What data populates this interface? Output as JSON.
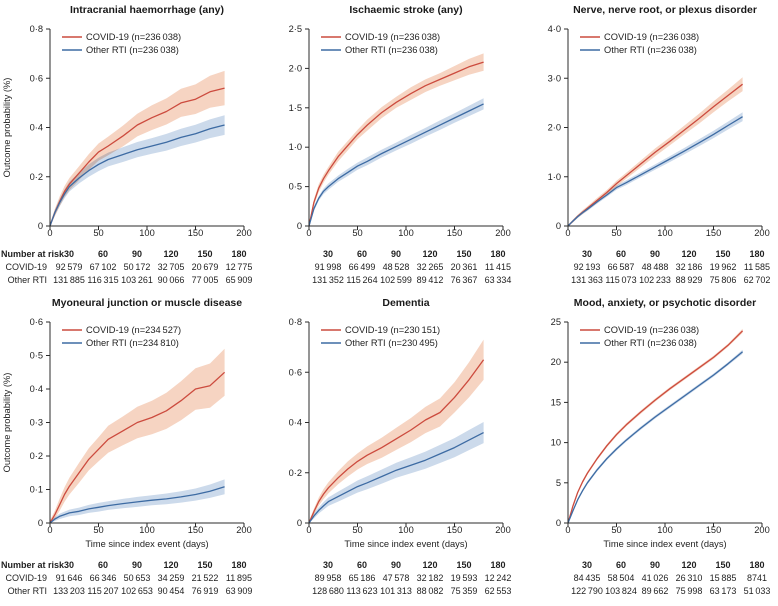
{
  "figure": {
    "ylabel": "Outcome probability (%)",
    "xlabel": "Time since index event (days)",
    "risk_label": "Number at risk",
    "risk_row_labels": [
      "COVID-19",
      "Other RTI"
    ],
    "colors": {
      "covid_line": "#cc4b3e",
      "covid_band": "#f6d4c2",
      "rti_line": "#3d6ba3",
      "rti_band": "#ccdaeb",
      "axis": "#2b2b2b",
      "text": "#1f1f1f"
    }
  },
  "chart_data": [
    {
      "type": "line",
      "title": "Intracranial haemorrhage (any)",
      "legend": [
        "COVID-19 (n=236 038)",
        "Other RTI (n=236 038)"
      ],
      "xlim": [
        0,
        200
      ],
      "xticks": [
        0,
        50,
        100,
        150,
        200
      ],
      "ylim": [
        0,
        0.8
      ],
      "yticks": [
        0,
        0.2,
        0.4,
        0.6,
        0.8
      ],
      "ytick_labels": [
        "0",
        "0·2",
        "0·4",
        "0·6",
        "0·8"
      ],
      "x": [
        0,
        5,
        10,
        15,
        20,
        30,
        40,
        50,
        60,
        75,
        90,
        105,
        120,
        135,
        150,
        165,
        180
      ],
      "series": [
        {
          "name": "COVID-19",
          "color": "covid",
          "y": [
            0,
            0.055,
            0.1,
            0.14,
            0.17,
            0.215,
            0.26,
            0.3,
            0.325,
            0.365,
            0.41,
            0.44,
            0.465,
            0.5,
            0.515,
            0.545,
            0.56
          ],
          "band": [
            0.01,
            0.015,
            0.02,
            0.022,
            0.025,
            0.028,
            0.032,
            0.035,
            0.038,
            0.042,
            0.046,
            0.05,
            0.053,
            0.057,
            0.06,
            0.065,
            0.07
          ]
        },
        {
          "name": "Other RTI",
          "color": "rti",
          "y": [
            0,
            0.055,
            0.095,
            0.13,
            0.16,
            0.195,
            0.225,
            0.25,
            0.27,
            0.29,
            0.31,
            0.325,
            0.34,
            0.36,
            0.375,
            0.395,
            0.41
          ],
          "band": [
            0.008,
            0.012,
            0.015,
            0.018,
            0.02,
            0.022,
            0.025,
            0.027,
            0.028,
            0.03,
            0.031,
            0.032,
            0.034,
            0.035,
            0.036,
            0.038,
            0.04
          ]
        }
      ],
      "number_at_risk": {
        "times": [
          "30",
          "60",
          "90",
          "120",
          "150",
          "180"
        ],
        "rows": [
          [
            "92 579",
            "67 102",
            "50 172",
            "32 705",
            "20 679",
            "12 775"
          ],
          [
            "131 885",
            "116 315",
            "103 261",
            "90 066",
            "77 005",
            "65 909"
          ]
        ]
      }
    },
    {
      "type": "line",
      "title": "Ischaemic stroke (any)",
      "legend": [
        "COVID-19 (n=236 038)",
        "Other RTI (n=236 038)"
      ],
      "xlim": [
        0,
        200
      ],
      "xticks": [
        0,
        50,
        100,
        150,
        200
      ],
      "ylim": [
        0,
        2.5
      ],
      "yticks": [
        0,
        0.5,
        1.0,
        1.5,
        2.0,
        2.5
      ],
      "ytick_labels": [
        "0",
        "0·5",
        "1·0",
        "1·5",
        "2·0",
        "2·5"
      ],
      "x": [
        0,
        5,
        10,
        15,
        20,
        30,
        40,
        50,
        60,
        75,
        90,
        105,
        120,
        135,
        150,
        165,
        180
      ],
      "series": [
        {
          "name": "COVID-19",
          "color": "covid",
          "y": [
            0,
            0.3,
            0.48,
            0.6,
            0.7,
            0.88,
            1.02,
            1.16,
            1.28,
            1.44,
            1.57,
            1.68,
            1.78,
            1.86,
            1.94,
            2.02,
            2.08
          ],
          "band": [
            0.03,
            0.04,
            0.05,
            0.05,
            0.05,
            0.06,
            0.06,
            0.06,
            0.07,
            0.07,
            0.07,
            0.08,
            0.08,
            0.08,
            0.09,
            0.1,
            0.11
          ]
        },
        {
          "name": "Other RTI",
          "color": "rti",
          "y": [
            0,
            0.22,
            0.35,
            0.44,
            0.5,
            0.6,
            0.68,
            0.76,
            0.82,
            0.92,
            1.01,
            1.1,
            1.19,
            1.28,
            1.37,
            1.46,
            1.55
          ],
          "band": [
            0.02,
            0.03,
            0.03,
            0.035,
            0.04,
            0.04,
            0.045,
            0.045,
            0.05,
            0.05,
            0.05,
            0.055,
            0.055,
            0.06,
            0.06,
            0.065,
            0.07
          ]
        }
      ],
      "number_at_risk": {
        "times": [
          "30",
          "60",
          "90",
          "120",
          "150",
          "180"
        ],
        "rows": [
          [
            "91 998",
            "66 499",
            "48 528",
            "32 265",
            "20 361",
            "11 415"
          ],
          [
            "131 352",
            "115 264",
            "102 599",
            "89 412",
            "76 367",
            "63 334"
          ]
        ]
      }
    },
    {
      "type": "line",
      "title": "Nerve, nerve root, or plexus disorder",
      "legend": [
        "COVID-19 (n=236 038)",
        "Other RTI (n=236 038)"
      ],
      "xlim": [
        0,
        200
      ],
      "xticks": [
        0,
        50,
        100,
        150,
        200
      ],
      "ylim": [
        0,
        4.0
      ],
      "yticks": [
        0,
        1.0,
        2.0,
        3.0,
        4.0
      ],
      "ytick_labels": [
        "0",
        "1·0",
        "2·0",
        "3·0",
        "4·0"
      ],
      "x": [
        0,
        5,
        10,
        15,
        20,
        30,
        40,
        50,
        60,
        75,
        90,
        105,
        120,
        135,
        150,
        165,
        180
      ],
      "series": [
        {
          "name": "COVID-19",
          "color": "covid",
          "y": [
            0,
            0.1,
            0.2,
            0.28,
            0.36,
            0.52,
            0.68,
            0.86,
            1.02,
            1.26,
            1.5,
            1.72,
            1.95,
            2.18,
            2.42,
            2.65,
            2.88
          ],
          "band": [
            0.02,
            0.03,
            0.03,
            0.04,
            0.04,
            0.05,
            0.05,
            0.06,
            0.06,
            0.07,
            0.08,
            0.08,
            0.09,
            0.1,
            0.11,
            0.12,
            0.14
          ]
        },
        {
          "name": "Other RTI",
          "color": "rti",
          "y": [
            0,
            0.1,
            0.19,
            0.27,
            0.34,
            0.49,
            0.63,
            0.78,
            0.88,
            1.04,
            1.2,
            1.36,
            1.52,
            1.69,
            1.86,
            2.04,
            2.22
          ],
          "band": [
            0.02,
            0.025,
            0.03,
            0.03,
            0.035,
            0.04,
            0.04,
            0.045,
            0.05,
            0.05,
            0.055,
            0.06,
            0.065,
            0.07,
            0.075,
            0.08,
            0.09
          ]
        }
      ],
      "number_at_risk": {
        "times": [
          "30",
          "60",
          "90",
          "120",
          "150",
          "180"
        ],
        "rows": [
          [
            "92 193",
            "66 587",
            "48 488",
            "32 186",
            "19 962",
            "11 585"
          ],
          [
            "131 363",
            "115 073",
            "102 233",
            "88 929",
            "75 806",
            "62 702"
          ]
        ]
      }
    },
    {
      "type": "line",
      "title": "Myoneural junction or muscle disease",
      "legend": [
        "COVID-19 (n=234 527)",
        "Other RTI (n=234 810)"
      ],
      "xlim": [
        0,
        200
      ],
      "xticks": [
        0,
        50,
        100,
        150,
        200
      ],
      "ylim": [
        0,
        0.6
      ],
      "yticks": [
        0,
        0.1,
        0.2,
        0.3,
        0.4,
        0.5,
        0.6
      ],
      "ytick_labels": [
        "0",
        "0·1",
        "0·2",
        "0·3",
        "0·4",
        "0·5",
        "0·6"
      ],
      "x": [
        0,
        5,
        10,
        15,
        20,
        30,
        40,
        50,
        60,
        75,
        90,
        105,
        120,
        135,
        150,
        165,
        180
      ],
      "series": [
        {
          "name": "COVID-19",
          "color": "covid",
          "y": [
            0,
            0.025,
            0.055,
            0.085,
            0.11,
            0.15,
            0.19,
            0.22,
            0.25,
            0.275,
            0.3,
            0.315,
            0.335,
            0.365,
            0.4,
            0.41,
            0.45
          ],
          "band": [
            0.008,
            0.012,
            0.018,
            0.022,
            0.025,
            0.03,
            0.033,
            0.036,
            0.04,
            0.043,
            0.047,
            0.05,
            0.054,
            0.058,
            0.062,
            0.066,
            0.07
          ]
        },
        {
          "name": "Other RTI",
          "color": "rti",
          "y": [
            0,
            0.012,
            0.02,
            0.025,
            0.03,
            0.035,
            0.042,
            0.047,
            0.052,
            0.058,
            0.063,
            0.068,
            0.072,
            0.078,
            0.085,
            0.095,
            0.108
          ],
          "band": [
            0.004,
            0.006,
            0.008,
            0.009,
            0.01,
            0.011,
            0.012,
            0.013,
            0.013,
            0.014,
            0.015,
            0.015,
            0.016,
            0.017,
            0.018,
            0.02,
            0.022
          ]
        }
      ],
      "number_at_risk": {
        "times": [
          "30",
          "60",
          "90",
          "120",
          "150",
          "180"
        ],
        "rows": [
          [
            "91 646",
            "66 346",
            "50 653",
            "34 259",
            "21 522",
            "11 895"
          ],
          [
            "133 203",
            "115 207",
            "102 653",
            "90 454",
            "76 919",
            "63 909"
          ]
        ]
      }
    },
    {
      "type": "line",
      "title": "Dementia",
      "legend": [
        "COVID-19 (n=230 151)",
        "Other RTI (n=230 495)"
      ],
      "xlim": [
        0,
        200
      ],
      "xticks": [
        0,
        50,
        100,
        150,
        200
      ],
      "ylim": [
        0,
        0.8
      ],
      "yticks": [
        0,
        0.2,
        0.4,
        0.6,
        0.8
      ],
      "ytick_labels": [
        "0",
        "0·2",
        "0·4",
        "0·6",
        "0·8"
      ],
      "x": [
        0,
        5,
        10,
        15,
        20,
        30,
        40,
        50,
        60,
        75,
        90,
        105,
        120,
        135,
        150,
        165,
        180
      ],
      "series": [
        {
          "name": "COVID-19",
          "color": "covid",
          "y": [
            0,
            0.045,
            0.085,
            0.115,
            0.14,
            0.18,
            0.215,
            0.245,
            0.27,
            0.3,
            0.335,
            0.37,
            0.41,
            0.44,
            0.5,
            0.57,
            0.65
          ],
          "band": [
            0.008,
            0.012,
            0.016,
            0.02,
            0.022,
            0.026,
            0.03,
            0.032,
            0.035,
            0.04,
            0.044,
            0.048,
            0.052,
            0.056,
            0.06,
            0.07,
            0.08
          ]
        },
        {
          "name": "Other RTI",
          "color": "rti",
          "y": [
            0,
            0.028,
            0.05,
            0.068,
            0.085,
            0.105,
            0.125,
            0.145,
            0.16,
            0.185,
            0.21,
            0.23,
            0.25,
            0.275,
            0.3,
            0.33,
            0.36
          ],
          "band": [
            0.006,
            0.01,
            0.012,
            0.015,
            0.017,
            0.02,
            0.022,
            0.024,
            0.026,
            0.028,
            0.03,
            0.032,
            0.034,
            0.036,
            0.038,
            0.04,
            0.042
          ]
        }
      ],
      "number_at_risk": {
        "times": [
          "30",
          "60",
          "90",
          "120",
          "150",
          "180"
        ],
        "rows": [
          [
            "89 958",
            "65 186",
            "47 578",
            "32 182",
            "19 593",
            "12 242"
          ],
          [
            "128 680",
            "113 623",
            "101 313",
            "88 082",
            "75 359",
            "62 553"
          ]
        ]
      }
    },
    {
      "type": "line",
      "title": "Mood, anxiety, or psychotic disorder",
      "legend": [
        "COVID-19 (n=236 038)",
        "Other RTI (n=236 038)"
      ],
      "xlim": [
        0,
        200
      ],
      "xticks": [
        0,
        50,
        100,
        150,
        200
      ],
      "ylim": [
        0,
        25
      ],
      "yticks": [
        0,
        5,
        10,
        15,
        20,
        25
      ],
      "ytick_labels": [
        "0",
        "5",
        "10",
        "15",
        "20",
        "25"
      ],
      "x": [
        0,
        5,
        10,
        15,
        20,
        30,
        40,
        50,
        60,
        75,
        90,
        105,
        120,
        135,
        150,
        165,
        180
      ],
      "series": [
        {
          "name": "COVID-19",
          "color": "covid",
          "y": [
            0,
            2.1,
            3.8,
            5.1,
            6.2,
            8.0,
            9.6,
            11.0,
            12.2,
            13.8,
            15.3,
            16.7,
            18.0,
            19.3,
            20.6,
            22.1,
            23.9
          ],
          "band": [
            0.1,
            0.15,
            0.15,
            0.2,
            0.2,
            0.2,
            0.2,
            0.2,
            0.2,
            0.2,
            0.2,
            0.2,
            0.2,
            0.2,
            0.2,
            0.2,
            0.25
          ]
        },
        {
          "name": "Other RTI",
          "color": "rti",
          "y": [
            0,
            1.5,
            2.9,
            4.0,
            5.0,
            6.6,
            8.0,
            9.2,
            10.3,
            11.8,
            13.2,
            14.5,
            15.8,
            17.1,
            18.4,
            19.8,
            21.3
          ],
          "band": [
            0.1,
            0.15,
            0.15,
            0.2,
            0.2,
            0.2,
            0.2,
            0.2,
            0.2,
            0.2,
            0.2,
            0.2,
            0.2,
            0.2,
            0.2,
            0.2,
            0.25
          ]
        }
      ],
      "number_at_risk": {
        "times": [
          "30",
          "60",
          "90",
          "120",
          "150",
          "180"
        ],
        "rows": [
          [
            "84 435",
            "58 504",
            "41 026",
            "26 310",
            "15 885",
            "8741"
          ],
          [
            "122 790",
            "103 824",
            "89 662",
            "75 998",
            "63 173",
            "51 033"
          ]
        ]
      }
    }
  ]
}
